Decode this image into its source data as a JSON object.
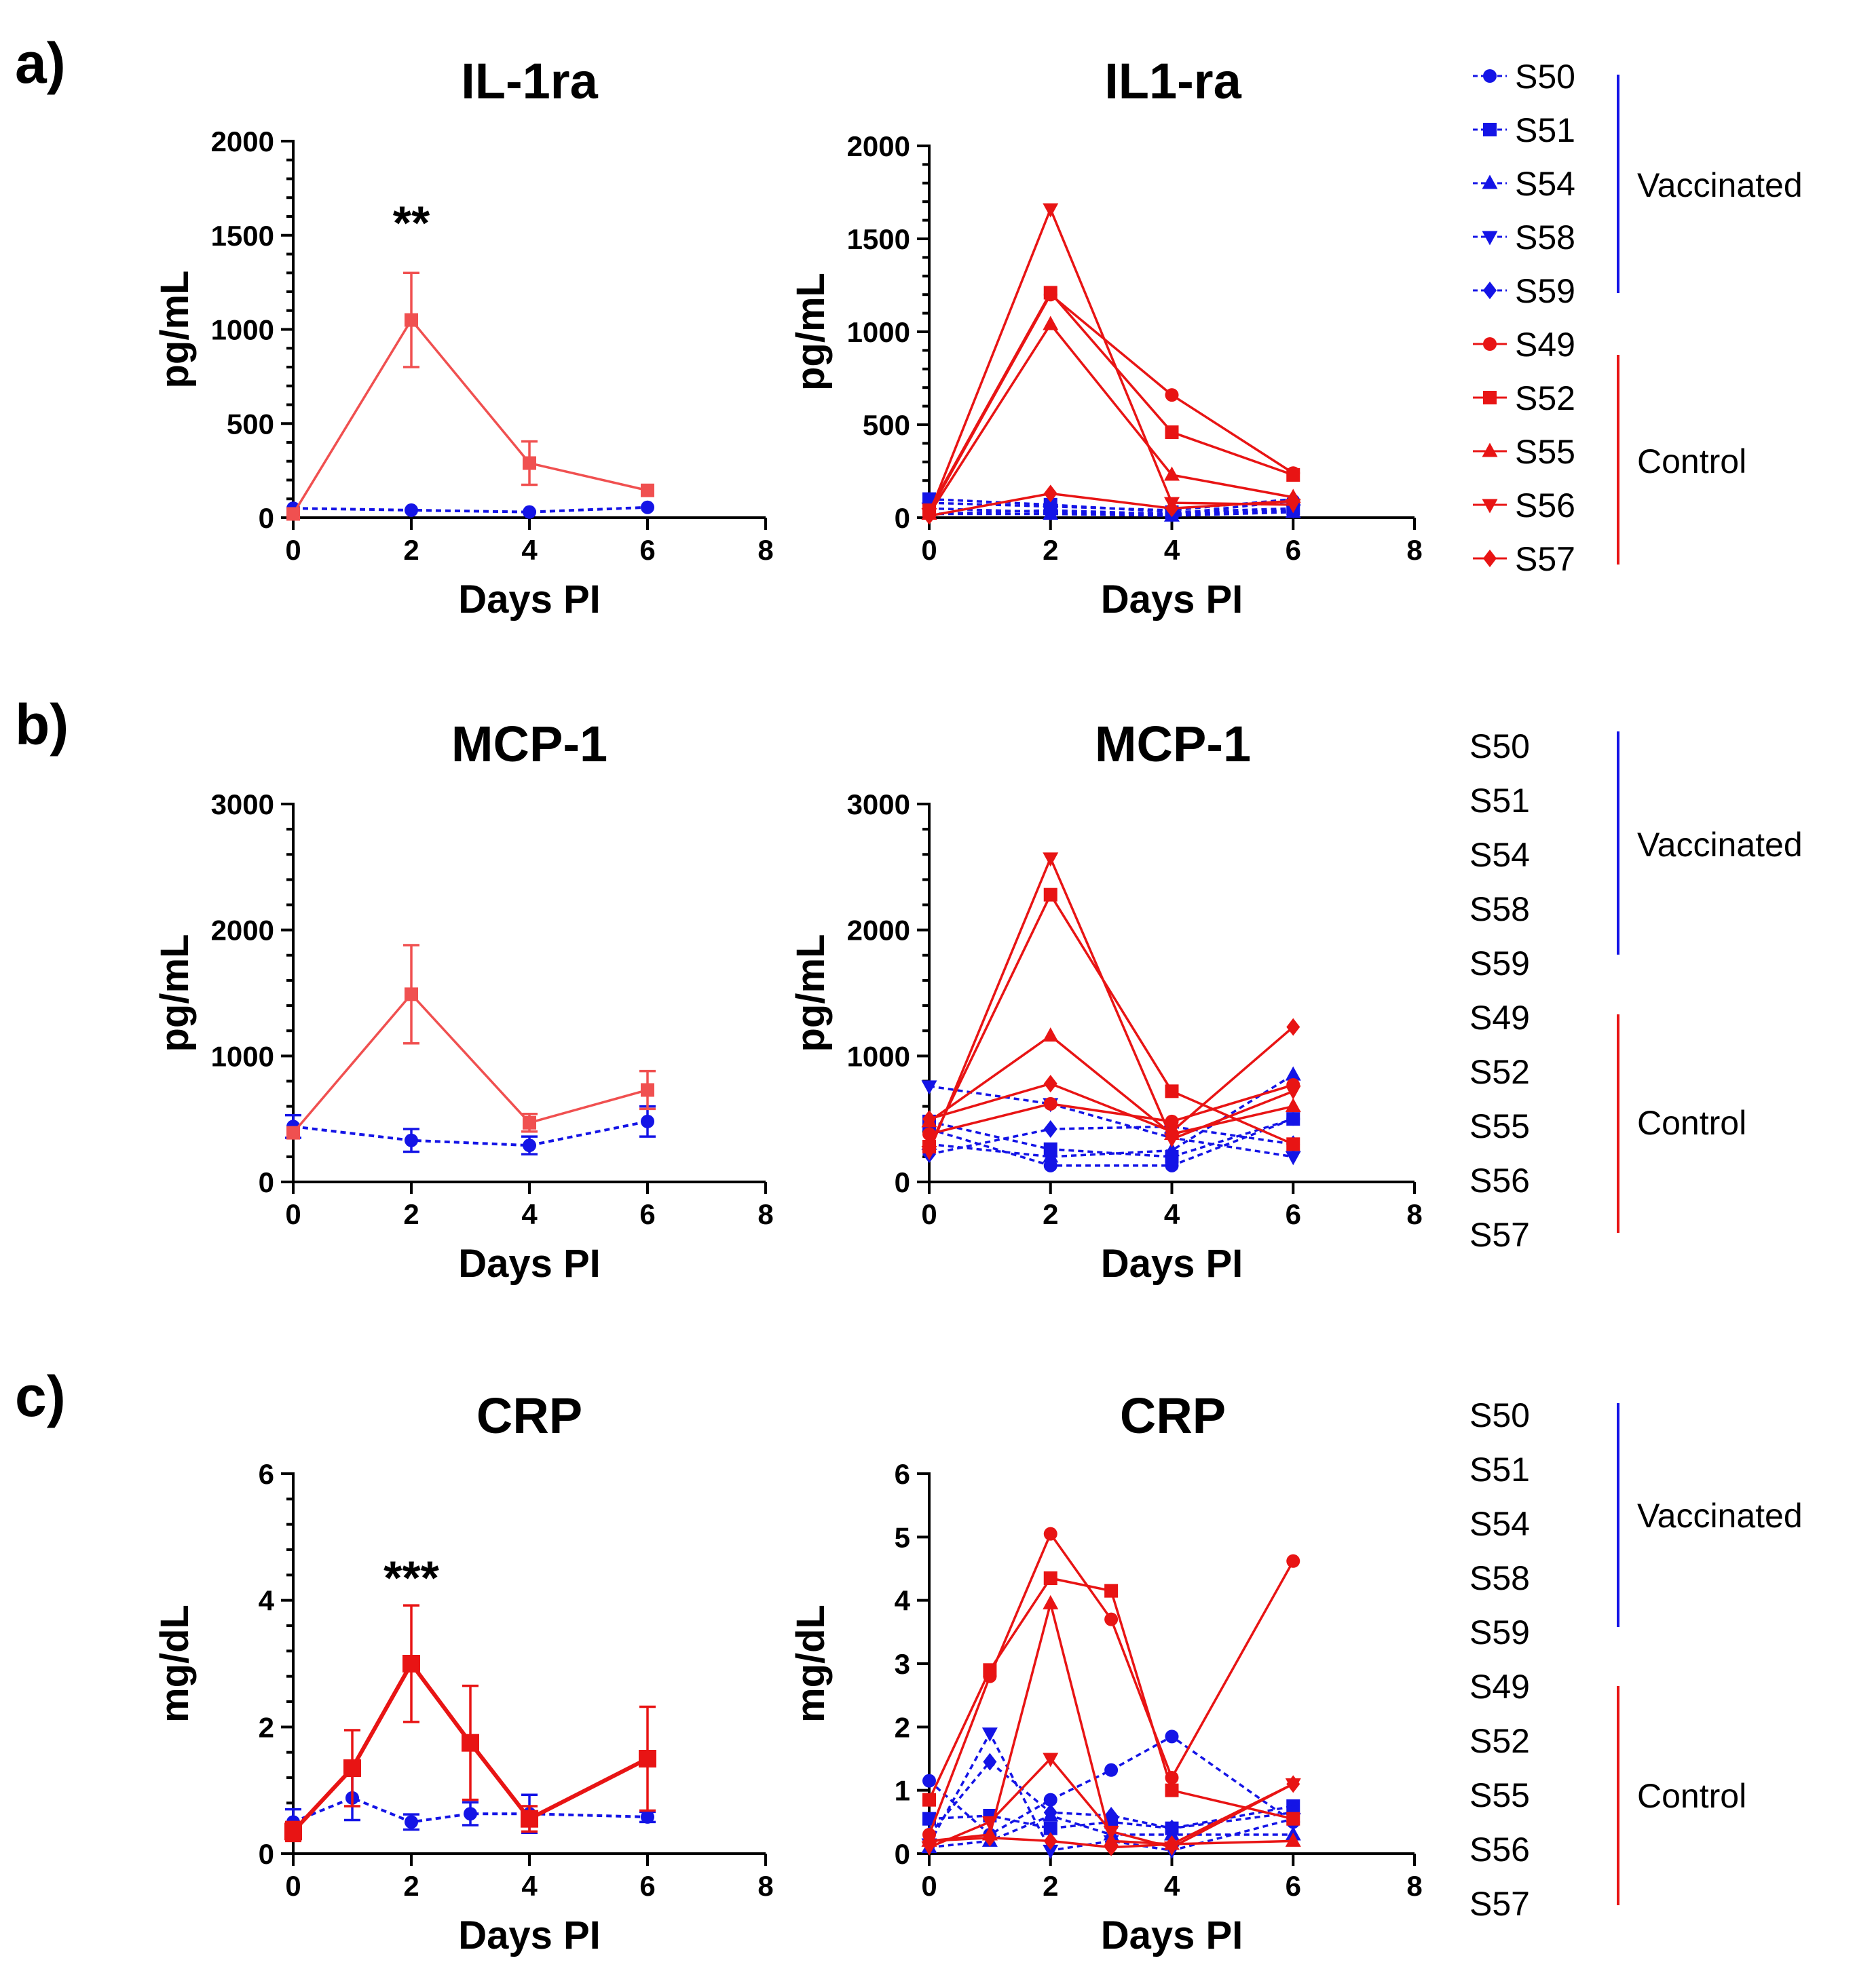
{
  "panels": [
    {
      "id": "a",
      "label": "a)"
    },
    {
      "id": "b",
      "label": "b)"
    },
    {
      "id": "c",
      "label": "c)"
    }
  ],
  "colors": {
    "vaccinated": "#1414e6",
    "control": "#e81414",
    "control_light": "#f05050"
  },
  "legend_groups": {
    "vaccinated": "Vaccinated",
    "control": "Control"
  },
  "chart_data": [
    {
      "id": "a-mean",
      "type": "line",
      "title": "IL-1ra",
      "xlabel": "Days PI",
      "ylabel": "pg/mL",
      "xlim": [
        0,
        8
      ],
      "ylim": [
        0,
        2000
      ],
      "xticks": [
        0,
        2,
        4,
        6,
        8
      ],
      "yticks": [
        0,
        500,
        1000,
        1500,
        2000
      ],
      "minor_y": 4,
      "significance": [
        {
          "x": 2,
          "y": 1480,
          "text": "**"
        }
      ],
      "series": [
        {
          "name": "Control",
          "group": "control",
          "marker": "square",
          "light": true,
          "x": [
            0,
            2,
            4,
            6
          ],
          "y": [
            20,
            1050,
            290,
            145
          ],
          "err": [
            0,
            250,
            115,
            0
          ]
        },
        {
          "name": "Vaccinated",
          "group": "vaccinated",
          "marker": "circle",
          "dashed": true,
          "x": [
            0,
            2,
            4,
            6
          ],
          "y": [
            50,
            40,
            30,
            55
          ],
          "err": [
            0,
            0,
            0,
            0
          ]
        }
      ]
    },
    {
      "id": "a-ind",
      "type": "line",
      "title": "IL1-ra",
      "xlabel": "Days PI",
      "ylabel": "pg/mL",
      "xlim": [
        0,
        8
      ],
      "ylim": [
        0,
        2000
      ],
      "xticks": [
        0,
        2,
        4,
        6,
        8
      ],
      "yticks": [
        0,
        500,
        1000,
        1500,
        2000
      ],
      "minor_y": 4,
      "series": [
        {
          "name": "S50",
          "group": "vaccinated",
          "marker": "circle",
          "dashed": true,
          "x": [
            0,
            2,
            4,
            6
          ],
          "y": [
            20,
            40,
            20,
            90
          ]
        },
        {
          "name": "S51",
          "group": "vaccinated",
          "marker": "square",
          "dashed": true,
          "x": [
            0,
            2,
            4,
            6
          ],
          "y": [
            100,
            70,
            30,
            50
          ]
        },
        {
          "name": "S54",
          "group": "vaccinated",
          "marker": "triangle-up",
          "dashed": true,
          "x": [
            0,
            2,
            4,
            6
          ],
          "y": [
            20,
            20,
            10,
            30
          ]
        },
        {
          "name": "S58",
          "group": "vaccinated",
          "marker": "triangle-down",
          "dashed": true,
          "x": [
            0,
            2,
            4,
            6
          ],
          "y": [
            50,
            30,
            20,
            40
          ]
        },
        {
          "name": "S59",
          "group": "vaccinated",
          "marker": "diamond",
          "dashed": true,
          "x": [
            0,
            2,
            4,
            6
          ],
          "y": [
            80,
            60,
            40,
            100
          ]
        },
        {
          "name": "S49",
          "group": "control",
          "marker": "circle",
          "x": [
            0,
            2,
            4,
            6
          ],
          "y": [
            30,
            1200,
            660,
            240
          ]
        },
        {
          "name": "S52",
          "group": "control",
          "marker": "square",
          "x": [
            0,
            2,
            4,
            6
          ],
          "y": [
            40,
            1210,
            460,
            230
          ]
        },
        {
          "name": "S55",
          "group": "control",
          "marker": "triangle-up",
          "x": [
            0,
            2,
            4,
            6
          ],
          "y": [
            20,
            1040,
            230,
            110
          ]
        },
        {
          "name": "S56",
          "group": "control",
          "marker": "triangle-down",
          "x": [
            0,
            2,
            4,
            6
          ],
          "y": [
            20,
            1660,
            80,
            70
          ]
        },
        {
          "name": "S57",
          "group": "control",
          "marker": "diamond",
          "x": [
            0,
            2,
            4,
            6
          ],
          "y": [
            10,
            130,
            50,
            90
          ]
        }
      ]
    },
    {
      "id": "b-mean",
      "type": "line",
      "title": "MCP-1",
      "xlabel": "Days PI",
      "ylabel": "pg/mL",
      "xlim": [
        0,
        8
      ],
      "ylim": [
        0,
        3000
      ],
      "xticks": [
        0,
        2,
        4,
        6,
        8
      ],
      "yticks": [
        0,
        1000,
        2000,
        3000
      ],
      "minor_y": 4,
      "series": [
        {
          "name": "Control",
          "group": "control",
          "marker": "square",
          "light": true,
          "x": [
            0,
            2,
            4,
            6
          ],
          "y": [
            390,
            1490,
            470,
            730
          ],
          "err": [
            0,
            390,
            70,
            150
          ]
        },
        {
          "name": "Vaccinated",
          "group": "vaccinated",
          "marker": "circle",
          "dashed": true,
          "x": [
            0,
            2,
            4,
            6
          ],
          "y": [
            440,
            330,
            290,
            480
          ],
          "err": [
            90,
            90,
            70,
            120
          ]
        }
      ]
    },
    {
      "id": "b-ind",
      "type": "line",
      "title": "MCP-1",
      "xlabel": "Days PI",
      "ylabel": "pg/mL",
      "xlim": [
        0,
        8
      ],
      "ylim": [
        0,
        3000
      ],
      "xticks": [
        0,
        2,
        4,
        6,
        8
      ],
      "yticks": [
        0,
        1000,
        2000,
        3000
      ],
      "minor_y": 4,
      "series": [
        {
          "name": "S50",
          "group": "vaccinated",
          "marker": "circle",
          "dashed": true,
          "x": [
            0,
            2,
            4,
            6
          ],
          "y": [
            420,
            130,
            130,
            500
          ]
        },
        {
          "name": "S51",
          "group": "vaccinated",
          "marker": "square",
          "dashed": true,
          "x": [
            0,
            2,
            4,
            6
          ],
          "y": [
            480,
            260,
            200,
            500
          ]
        },
        {
          "name": "S54",
          "group": "vaccinated",
          "marker": "triangle-up",
          "dashed": true,
          "x": [
            0,
            2,
            4,
            6
          ],
          "y": [
            300,
            200,
            250,
            850
          ]
        },
        {
          "name": "S58",
          "group": "vaccinated",
          "marker": "triangle-down",
          "dashed": true,
          "x": [
            0,
            2,
            4,
            6
          ],
          "y": [
            760,
            620,
            350,
            200
          ]
        },
        {
          "name": "S59",
          "group": "vaccinated",
          "marker": "diamond",
          "dashed": true,
          "x": [
            0,
            2,
            4,
            6
          ],
          "y": [
            220,
            420,
            440,
            300
          ]
        },
        {
          "name": "S49",
          "group": "control",
          "marker": "circle",
          "x": [
            0,
            2,
            4,
            6
          ],
          "y": [
            380,
            620,
            480,
            770
          ]
        },
        {
          "name": "S52",
          "group": "control",
          "marker": "square",
          "x": [
            0,
            2,
            4,
            6
          ],
          "y": [
            280,
            2280,
            720,
            300
          ]
        },
        {
          "name": "S55",
          "group": "control",
          "marker": "triangle-up",
          "x": [
            0,
            2,
            4,
            6
          ],
          "y": [
            480,
            1160,
            380,
            600
          ]
        },
        {
          "name": "S56",
          "group": "control",
          "marker": "triangle-down",
          "x": [
            0,
            2,
            4,
            6
          ],
          "y": [
            240,
            2570,
            340,
            720
          ]
        },
        {
          "name": "S57",
          "group": "control",
          "marker": "diamond",
          "x": [
            0,
            2,
            4,
            6
          ],
          "y": [
            500,
            780,
            400,
            1230
          ]
        }
      ]
    },
    {
      "id": "c-mean",
      "type": "line",
      "title": "CRP",
      "xlabel": "Days PI",
      "ylabel": "mg/dL",
      "xlim": [
        0,
        8
      ],
      "ylim": [
        0,
        6
      ],
      "xticks": [
        0,
        2,
        4,
        6,
        8
      ],
      "yticks": [
        0,
        2,
        4,
        6
      ],
      "minor_y": 4,
      "significance": [
        {
          "x": 2,
          "y": 4.1,
          "text": "***"
        }
      ],
      "series": [
        {
          "name": "Control",
          "group": "control",
          "marker": "square",
          "x": [
            0,
            1,
            2,
            3,
            4,
            6
          ],
          "y": [
            0.35,
            1.35,
            3.0,
            1.75,
            0.55,
            1.5
          ],
          "err": [
            0.15,
            0.6,
            0.92,
            0.9,
            0.2,
            0.82
          ]
        },
        {
          "name": "Vaccinated",
          "group": "vaccinated",
          "marker": "circle",
          "dashed": true,
          "x": [
            0,
            1,
            2,
            3,
            4,
            6
          ],
          "y": [
            0.5,
            0.88,
            0.5,
            0.63,
            0.63,
            0.58
          ],
          "err": [
            0.2,
            0.35,
            0.12,
            0.18,
            0.3,
            0.08
          ]
        }
      ]
    },
    {
      "id": "c-ind",
      "type": "line",
      "title": "CRP",
      "xlabel": "Days PI",
      "ylabel": "mg/dL",
      "xlim": [
        0,
        8
      ],
      "ylim": [
        0,
        6
      ],
      "xticks": [
        0,
        2,
        4,
        6,
        8
      ],
      "yticks": [
        0,
        1,
        2,
        3,
        4,
        5,
        6
      ],
      "minor_y": 0,
      "series": [
        {
          "name": "S50",
          "group": "vaccinated",
          "marker": "circle",
          "dashed": true,
          "x": [
            0,
            1,
            2,
            3,
            4,
            6
          ],
          "y": [
            1.15,
            0.3,
            0.85,
            1.32,
            1.85,
            0.5
          ]
        },
        {
          "name": "S51",
          "group": "vaccinated",
          "marker": "square",
          "dashed": true,
          "x": [
            0,
            1,
            2,
            3,
            4,
            6
          ],
          "y": [
            0.55,
            0.6,
            0.4,
            0.5,
            0.4,
            0.75
          ]
        },
        {
          "name": "S54",
          "group": "vaccinated",
          "marker": "triangle-up",
          "dashed": true,
          "x": [
            0,
            1,
            2,
            3,
            4,
            6
          ],
          "y": [
            0.1,
            0.2,
            0.6,
            0.3,
            0.3,
            0.3
          ]
        },
        {
          "name": "S58",
          "group": "vaccinated",
          "marker": "triangle-down",
          "dashed": true,
          "x": [
            0,
            1,
            2,
            3,
            4,
            6
          ],
          "y": [
            0.15,
            1.9,
            0.05,
            0.2,
            0.05,
            0.55
          ]
        },
        {
          "name": "S59",
          "group": "vaccinated",
          "marker": "diamond",
          "dashed": true,
          "x": [
            0,
            1,
            2,
            3,
            4,
            6
          ],
          "y": [
            0.3,
            1.45,
            0.65,
            0.6,
            0.4,
            0.65
          ]
        },
        {
          "name": "S49",
          "group": "control",
          "marker": "circle",
          "x": [
            0,
            1,
            2,
            3,
            4,
            6
          ],
          "y": [
            0.3,
            2.8,
            5.05,
            3.7,
            1.2,
            4.62
          ]
        },
        {
          "name": "S52",
          "group": "control",
          "marker": "square",
          "x": [
            0,
            1,
            2,
            3,
            4,
            6
          ],
          "y": [
            0.85,
            2.9,
            4.35,
            4.15,
            1.0,
            0.55
          ]
        },
        {
          "name": "S55",
          "group": "control",
          "marker": "triangle-up",
          "x": [
            0,
            1,
            2,
            3,
            4,
            6
          ],
          "y": [
            0.2,
            0.3,
            3.95,
            0.2,
            0.15,
            0.2
          ]
        },
        {
          "name": "S56",
          "group": "control",
          "marker": "triangle-down",
          "x": [
            0,
            1,
            2,
            3,
            4,
            6
          ],
          "y": [
            0.1,
            0.5,
            1.5,
            0.35,
            0.1,
            1.1
          ]
        },
        {
          "name": "S57",
          "group": "control",
          "marker": "diamond",
          "x": [
            0,
            1,
            2,
            3,
            4,
            6
          ],
          "y": [
            0.2,
            0.25,
            0.2,
            0.1,
            0.15,
            1.1
          ]
        }
      ]
    }
  ],
  "legends": [
    {
      "id": "leg-a",
      "with_markers": true,
      "items": [
        {
          "name": "S50",
          "group": "vaccinated",
          "marker": "circle"
        },
        {
          "name": "S51",
          "group": "vaccinated",
          "marker": "square"
        },
        {
          "name": "S54",
          "group": "vaccinated",
          "marker": "triangle-up"
        },
        {
          "name": "S58",
          "group": "vaccinated",
          "marker": "triangle-down"
        },
        {
          "name": "S59",
          "group": "vaccinated",
          "marker": "diamond"
        },
        {
          "name": "S49",
          "group": "control",
          "marker": "circle"
        },
        {
          "name": "S52",
          "group": "control",
          "marker": "square"
        },
        {
          "name": "S55",
          "group": "control",
          "marker": "triangle-up"
        },
        {
          "name": "S56",
          "group": "control",
          "marker": "triangle-down"
        },
        {
          "name": "S57",
          "group": "control",
          "marker": "diamond"
        }
      ]
    },
    {
      "id": "leg-b",
      "with_markers": false,
      "items": [
        {
          "name": "S50",
          "group": "vaccinated"
        },
        {
          "name": "S51",
          "group": "vaccinated"
        },
        {
          "name": "S54",
          "group": "vaccinated"
        },
        {
          "name": "S58",
          "group": "vaccinated"
        },
        {
          "name": "S59",
          "group": "vaccinated"
        },
        {
          "name": "S49",
          "group": "control"
        },
        {
          "name": "S52",
          "group": "control"
        },
        {
          "name": "S55",
          "group": "control"
        },
        {
          "name": "S56",
          "group": "control"
        },
        {
          "name": "S57",
          "group": "control"
        }
      ]
    },
    {
      "id": "leg-c",
      "with_markers": false,
      "items": [
        {
          "name": "S50",
          "group": "vaccinated"
        },
        {
          "name": "S51",
          "group": "vaccinated"
        },
        {
          "name": "S54",
          "group": "vaccinated"
        },
        {
          "name": "S58",
          "group": "vaccinated"
        },
        {
          "name": "S59",
          "group": "vaccinated"
        },
        {
          "name": "S49",
          "group": "control"
        },
        {
          "name": "S52",
          "group": "control"
        },
        {
          "name": "S55",
          "group": "control"
        },
        {
          "name": "S56",
          "group": "control"
        },
        {
          "name": "S57",
          "group": "control"
        }
      ]
    }
  ]
}
